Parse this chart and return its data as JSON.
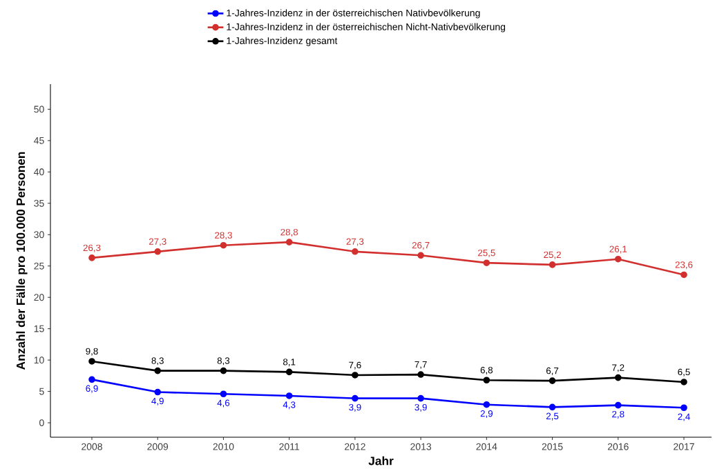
{
  "chart_data": {
    "type": "line",
    "xlabel": "Jahr",
    "ylabel": "Anzahl der Fälle pro 100.000 Personen",
    "x": [
      2008,
      2009,
      2010,
      2011,
      2012,
      2013,
      2014,
      2015,
      2016,
      2017
    ],
    "xlim": [
      2007.37,
      2017.42
    ],
    "xticks": [
      2008,
      2009,
      2010,
      2011,
      2012,
      2013,
      2014,
      2015,
      2016,
      2017
    ],
    "ylim": [
      -2.3,
      54
    ],
    "yticks": [
      0,
      5,
      10,
      15,
      20,
      25,
      30,
      35,
      40,
      45,
      50
    ],
    "grid": false,
    "legend": "top",
    "marker": "circle",
    "line_style": "solid",
    "series": [
      {
        "name": "1-Jahres-Inzidenz in der österreichischen Nativbevölkerung",
        "color": "#0000ff",
        "values": [
          6.9,
          4.9,
          4.6,
          4.3,
          3.9,
          3.9,
          2.9,
          2.5,
          2.8,
          2.4
        ],
        "value_labels": [
          "6,9",
          "4,9",
          "4,6",
          "4,3",
          "3,9",
          "3,9",
          "2,9",
          "2,5",
          "2,8",
          "2,4"
        ]
      },
      {
        "name": "1-Jahres-Inzidenz in der österreichischen Nicht-Nativbevölkerung",
        "color": "#d1302f",
        "values": [
          26.3,
          27.3,
          28.3,
          28.8,
          27.3,
          26.7,
          25.5,
          25.2,
          26.1,
          23.6
        ],
        "value_labels": [
          "26,3",
          "27,3",
          "28,3",
          "28,8",
          "27,3",
          "26,7",
          "25,5",
          "25,2",
          "26,1",
          "23,6"
        ]
      },
      {
        "name": "1-Jahres-Inzidenz gesamt",
        "color": "#000000",
        "values": [
          9.8,
          8.3,
          8.3,
          8.1,
          7.6,
          7.7,
          6.8,
          6.7,
          7.2,
          6.5
        ],
        "value_labels": [
          "9,8",
          "8,3",
          "8,3",
          "8,1",
          "7,6",
          "7,7",
          "6,8",
          "6,7",
          "7,2",
          "6,5"
        ]
      }
    ]
  }
}
